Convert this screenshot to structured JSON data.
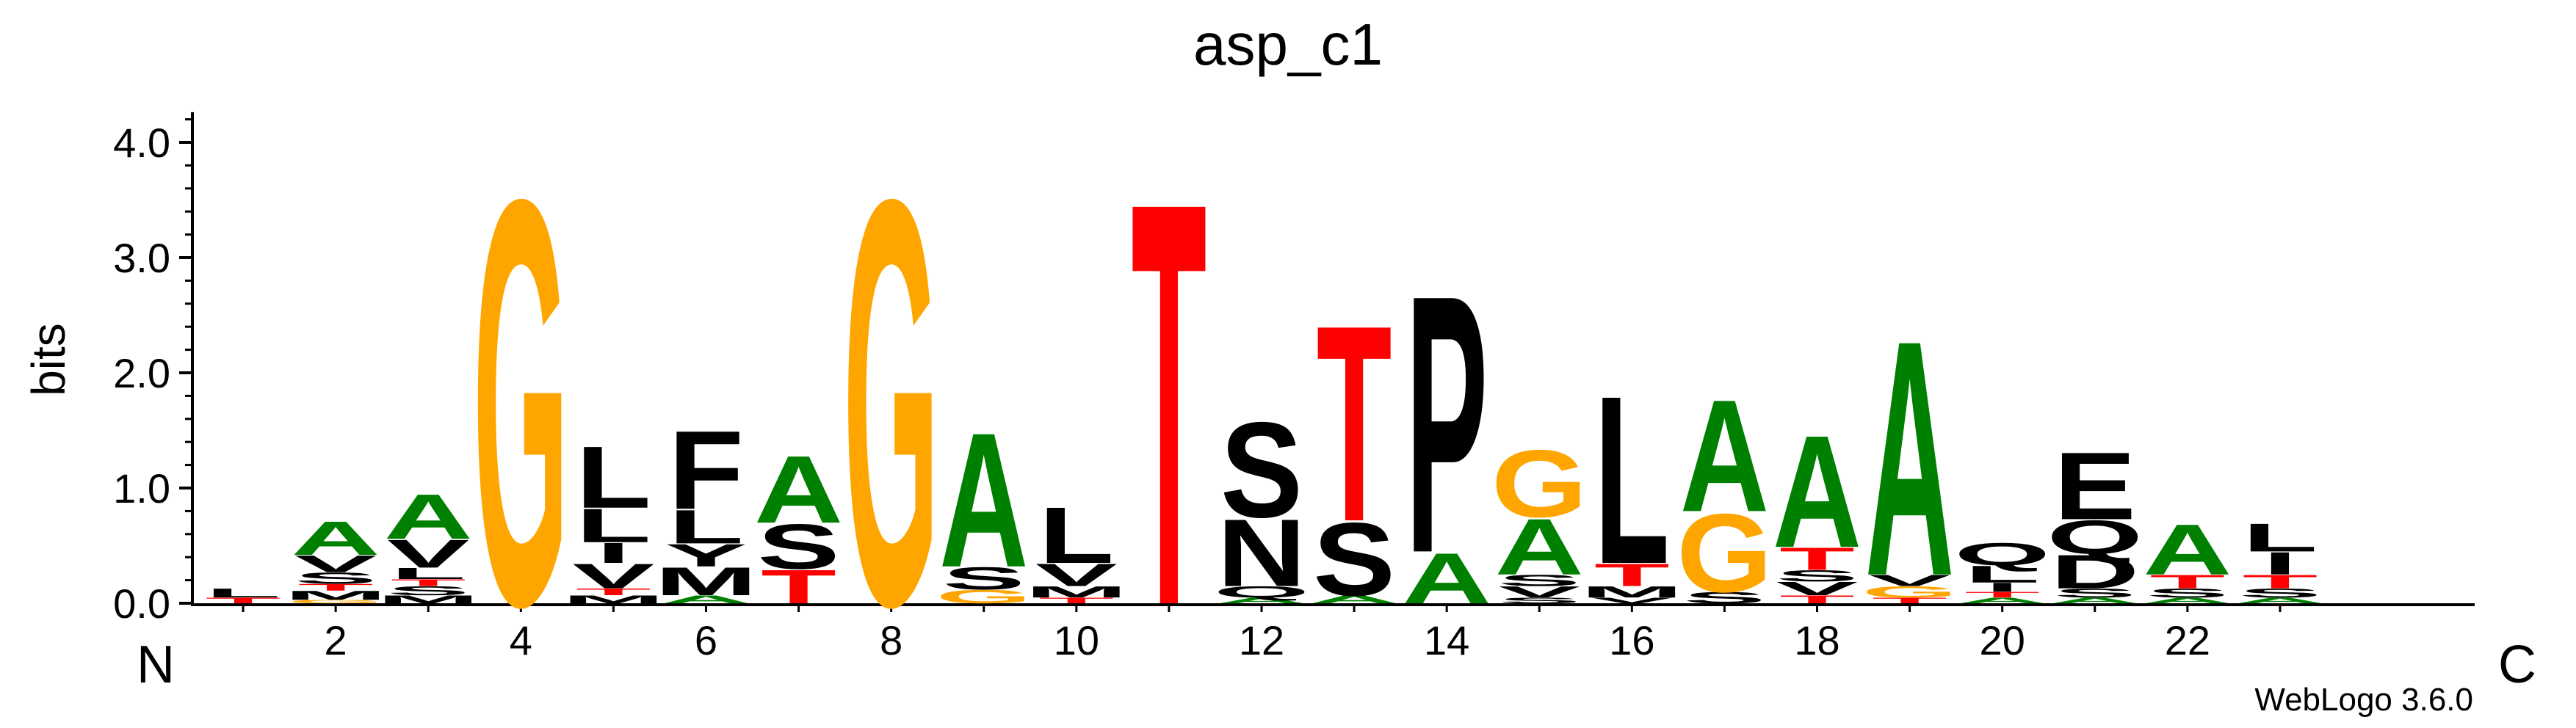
{
  "chart_data": {
    "type": "sequence-logo",
    "title": "asp_c1",
    "ylabel": "bits",
    "ylim": [
      0,
      4.3
    ],
    "yticks": [
      "0.0",
      "1.0",
      "2.0",
      "3.0",
      "4.0"
    ],
    "xticks": [
      "2",
      "4",
      "6",
      "8",
      "10",
      "12",
      "14",
      "16",
      "18",
      "20",
      "22"
    ],
    "n_terminus_label": "N",
    "c_terminus_label": "C",
    "credit": "WebLogo 3.6.0",
    "grid": false,
    "colors": {
      "hydrophobic": "#000000",
      "polar": "#000000",
      "small": "#008000",
      "glycine": "#FFA500",
      "threonine": "#FF0000",
      "methionine": "#000000",
      "rare": "#0000CC"
    },
    "positions": [
      {
        "pos": 1,
        "stack": [
          {
            "l": "T",
            "h": 0.05
          },
          {
            "l": "L",
            "h": 0.08
          }
        ]
      },
      {
        "pos": 2,
        "stack": [
          {
            "l": "G",
            "h": 0.03
          },
          {
            "l": "M",
            "h": 0.08
          },
          {
            "l": "T",
            "h": 0.06
          },
          {
            "l": "S",
            "h": 0.1
          },
          {
            "l": "V",
            "h": 0.15
          },
          {
            "l": "A",
            "h": 0.3
          }
        ]
      },
      {
        "pos": 3,
        "stack": [
          {
            "l": "M",
            "h": 0.07
          },
          {
            "l": "S",
            "h": 0.08
          },
          {
            "l": "T",
            "h": 0.06
          },
          {
            "l": "L",
            "h": 0.1
          },
          {
            "l": "V",
            "h": 0.25
          },
          {
            "l": "A",
            "h": 0.4
          }
        ]
      },
      {
        "pos": 4,
        "stack": [
          {
            "l": "G",
            "h": 3.62
          }
        ]
      },
      {
        "pos": 5,
        "stack": [
          {
            "l": "M",
            "h": 0.07
          },
          {
            "l": "T",
            "h": 0.06
          },
          {
            "l": "V",
            "h": 0.22
          },
          {
            "l": "I",
            "h": 0.18
          },
          {
            "l": "L",
            "h": 0.3
          },
          {
            "l": "L",
            "h": 0.55
          }
        ]
      },
      {
        "pos": 6,
        "stack": [
          {
            "l": "A",
            "h": 0.07
          },
          {
            "l": "M",
            "h": 0.25
          },
          {
            "l": "Y",
            "h": 0.2
          },
          {
            "l": "L",
            "h": 0.3
          },
          {
            "l": "F",
            "h": 0.7
          }
        ]
      },
      {
        "pos": 7,
        "stack": [
          {
            "l": "T",
            "h": 0.3
          },
          {
            "l": "S",
            "h": 0.4
          },
          {
            "l": "A",
            "h": 0.6
          }
        ]
      },
      {
        "pos": 8,
        "stack": [
          {
            "l": "G",
            "h": 3.62
          }
        ]
      },
      {
        "pos": 9,
        "stack": [
          {
            "l": "G",
            "h": 0.12
          },
          {
            "l": "S",
            "h": 0.2
          },
          {
            "l": "A",
            "h": 1.2
          }
        ]
      },
      {
        "pos": 10,
        "stack": [
          {
            "l": "T",
            "h": 0.05
          },
          {
            "l": "M",
            "h": 0.1
          },
          {
            "l": "V",
            "h": 0.2
          },
          {
            "l": "L",
            "h": 0.5
          }
        ]
      },
      {
        "pos": 11,
        "stack": [
          {
            "l": "T",
            "h": 3.6
          }
        ]
      },
      {
        "pos": 12,
        "stack": [
          {
            "l": "A",
            "h": 0.05
          },
          {
            "l": "Q",
            "h": 0.1
          },
          {
            "l": "N",
            "h": 0.6
          },
          {
            "l": "S",
            "h": 0.85
          }
        ]
      },
      {
        "pos": 13,
        "stack": [
          {
            "l": "A",
            "h": 0.07
          },
          {
            "l": "S",
            "h": 0.65
          },
          {
            "l": "T",
            "h": 1.75
          }
        ]
      },
      {
        "pos": 14,
        "stack": [
          {
            "l": "A",
            "h": 0.45
          },
          {
            "l": "P",
            "h": 2.3
          }
        ]
      },
      {
        "pos": 15,
        "stack": [
          {
            "l": "S",
            "h": 0.05
          },
          {
            "l": "V",
            "h": 0.1
          },
          {
            "l": "S",
            "h": 0.1
          },
          {
            "l": "A",
            "h": 0.5
          },
          {
            "l": "G",
            "h": 0.6
          }
        ]
      },
      {
        "pos": 16,
        "stack": [
          {
            "l": "V",
            "h": 0.05
          },
          {
            "l": "M",
            "h": 0.1
          },
          {
            "l": "T",
            "h": 0.2
          },
          {
            "l": "L",
            "h": 1.5
          }
        ]
      },
      {
        "pos": 17,
        "stack": [
          {
            "l": "S",
            "h": 0.1
          },
          {
            "l": "G",
            "h": 0.7
          },
          {
            "l": "A",
            "h": 1.0
          }
        ]
      },
      {
        "pos": 18,
        "stack": [
          {
            "l": "T",
            "h": 0.07
          },
          {
            "l": "V",
            "h": 0.12
          },
          {
            "l": "S",
            "h": 0.1
          },
          {
            "l": "T",
            "h": 0.2
          },
          {
            "l": "A",
            "h": 1.0
          }
        ]
      },
      {
        "pos": 19,
        "stack": [
          {
            "l": "T",
            "h": 0.05
          },
          {
            "l": "G",
            "h": 0.1
          },
          {
            "l": "V",
            "h": 0.1
          },
          {
            "l": "A",
            "h": 2.1
          }
        ]
      },
      {
        "pos": 20,
        "stack": [
          {
            "l": "A",
            "h": 0.05
          },
          {
            "l": "T",
            "h": 0.05
          },
          {
            "l": "I",
            "h": 0.08
          },
          {
            "l": "L",
            "h": 0.15
          },
          {
            "l": "Q",
            "h": 0.2
          }
        ]
      },
      {
        "pos": 21,
        "stack": [
          {
            "l": "A",
            "h": 0.05
          },
          {
            "l": "S",
            "h": 0.08
          },
          {
            "l": "D",
            "h": 0.3
          },
          {
            "l": "Q",
            "h": 0.3
          },
          {
            "l": "E",
            "h": 0.6
          }
        ]
      },
      {
        "pos": 22,
        "stack": [
          {
            "l": "A",
            "h": 0.05
          },
          {
            "l": "S",
            "h": 0.08
          },
          {
            "l": "T",
            "h": 0.12
          },
          {
            "l": "A",
            "h": 0.45
          }
        ]
      },
      {
        "pos": 23,
        "stack": [
          {
            "l": "A",
            "h": 0.05
          },
          {
            "l": "S",
            "h": 0.08
          },
          {
            "l": "T",
            "h": 0.12
          },
          {
            "l": "I",
            "h": 0.2
          },
          {
            "l": "L",
            "h": 0.25
          }
        ]
      }
    ]
  }
}
